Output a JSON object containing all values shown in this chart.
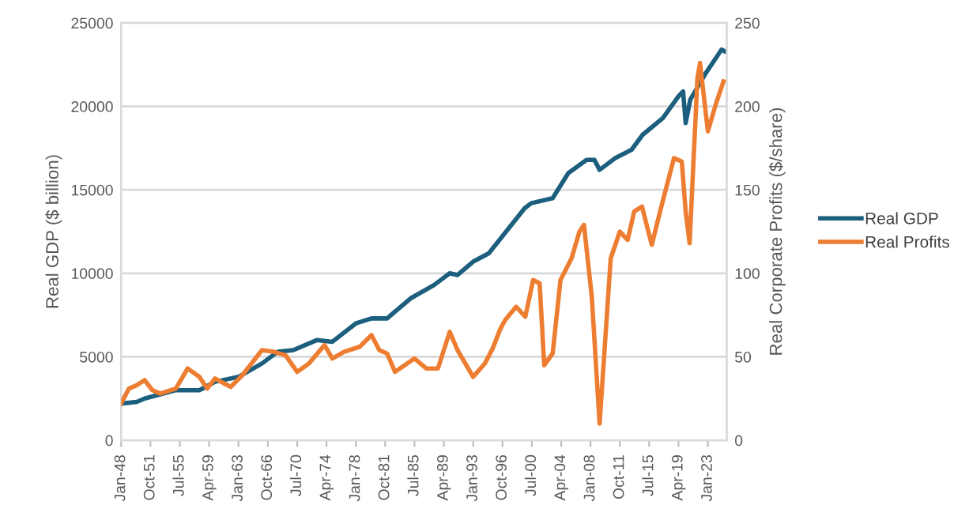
{
  "chart_data": {
    "type": "line",
    "ylabel": "Real GDP ($ billion)",
    "y2label": "Real Corporate Profits ($/share)",
    "xlim": [
      "1948-01",
      "2025-06"
    ],
    "xticks": [
      {
        "value": "1948-01",
        "label": "Jan-48"
      },
      {
        "value": "1951-10",
        "label": "Oct-51"
      },
      {
        "value": "1955-07",
        "label": "Jul-55"
      },
      {
        "value": "1959-04",
        "label": "Apr-59"
      },
      {
        "value": "1963-01",
        "label": "Jan-63"
      },
      {
        "value": "1966-10",
        "label": "Oct-66"
      },
      {
        "value": "1970-07",
        "label": "Jul-70"
      },
      {
        "value": "1974-04",
        "label": "Apr-74"
      },
      {
        "value": "1978-01",
        "label": "Jan-78"
      },
      {
        "value": "1981-10",
        "label": "Oct-81"
      },
      {
        "value": "1985-07",
        "label": "Jul-85"
      },
      {
        "value": "1989-04",
        "label": "Apr-89"
      },
      {
        "value": "1993-01",
        "label": "Jan-93"
      },
      {
        "value": "1996-10",
        "label": "Oct-96"
      },
      {
        "value": "2000-07",
        "label": "Jul-00"
      },
      {
        "value": "2004-04",
        "label": "Apr-04"
      },
      {
        "value": "2008-01",
        "label": "Jan-08"
      },
      {
        "value": "2011-10",
        "label": "Oct-11"
      },
      {
        "value": "2015-07",
        "label": "Jul-15"
      },
      {
        "value": "2019-04",
        "label": "Apr-19"
      },
      {
        "value": "2023-01",
        "label": "Jan-23"
      }
    ],
    "ylim": [
      0,
      25000
    ],
    "yticks": [
      0,
      5000,
      10000,
      15000,
      20000,
      25000
    ],
    "y2lim": [
      0,
      250
    ],
    "y2ticks": [
      0,
      50,
      100,
      150,
      200,
      250
    ],
    "grid": "y",
    "legend": "right",
    "line_style": "solid",
    "marker": "none",
    "series": [
      {
        "name": "Real GDP",
        "color": "#1b5e7e",
        "x": [
          "1948-01",
          "1950-01",
          "1951-01",
          "1955-01",
          "1958-01",
          "1960-01",
          "1963-01",
          "1966-01",
          "1968-01",
          "1970-01",
          "1973-01",
          "1975-01",
          "1978-01",
          "1980-01",
          "1982-01",
          "1983-01",
          "1985-01",
          "1988-01",
          "1990-01",
          "1991-01",
          "1993-01",
          "1995-01",
          "1999-08",
          "2000-06",
          "2003-03",
          "2005-03",
          "2007-07",
          "2008-07",
          "2009-03",
          "2011-03",
          "2013-04",
          "2014-09",
          "2017-04",
          "2019-04",
          "2019-11",
          "2020-03",
          "2020-10",
          "2022-10",
          "2024-10",
          "2025-03"
        ],
        "values": [
          2200,
          2300,
          2500,
          3000,
          3000,
          3500,
          3800,
          4600,
          5300,
          5400,
          6000,
          5900,
          7000,
          7300,
          7300,
          7700,
          8500,
          9300,
          10000,
          9900,
          10700,
          11200,
          13900,
          14200,
          14500,
          16000,
          16800,
          16800,
          16200,
          16900,
          17400,
          18300,
          19300,
          20600,
          20900,
          19000,
          20400,
          22000,
          23400,
          23300
        ]
      },
      {
        "name": "Real Profits",
        "color": "#ed7d31",
        "axis": "y2",
        "x": [
          "1948-01",
          "1949-01",
          "1950-01",
          "1951-01",
          "1952-01",
          "1953-01",
          "1955-01",
          "1956-07",
          "1958-01",
          "1959-01",
          "1960-01",
          "1962-01",
          "1963-07",
          "1966-01",
          "1967-07",
          "1969-01",
          "1970-07",
          "1972-01",
          "1974-01",
          "1975-01",
          "1976-07",
          "1978-07",
          "1980-01",
          "1981-01",
          "1982-01",
          "1983-01",
          "1985-07",
          "1987-01",
          "1988-07",
          "1990-01",
          "1991-01",
          "1993-01",
          "1994-07",
          "1995-07",
          "1996-07",
          "1997-02",
          "1998-07",
          "1999-09",
          "2000-09",
          "2001-07",
          "2002-02",
          "2003-03",
          "2004-03",
          "2005-08",
          "2006-08",
          "2007-03",
          "2008-03",
          "2009-03",
          "2010-08",
          "2011-10",
          "2012-10",
          "2013-08",
          "2014-08",
          "2015-11",
          "2016-11",
          "2018-09",
          "2019-09",
          "2020-03",
          "2020-09",
          "2021-09",
          "2022-01",
          "2023-01",
          "2024-01",
          "2025-01"
        ],
        "values": [
          22,
          31,
          33,
          36,
          30,
          28,
          31,
          43,
          38,
          31,
          37,
          32,
          39,
          54,
          53,
          51,
          41,
          46,
          57,
          49,
          53,
          56,
          63,
          54,
          52,
          41,
          49,
          43,
          43,
          65,
          54,
          38,
          46,
          55,
          67,
          72,
          80,
          74,
          96,
          94,
          45,
          52,
          96,
          109,
          125,
          129,
          86,
          10,
          109,
          125,
          120,
          137,
          140,
          117,
          136,
          169,
          167,
          137,
          118,
          217,
          226,
          185,
          201,
          215
        ]
      }
    ]
  }
}
